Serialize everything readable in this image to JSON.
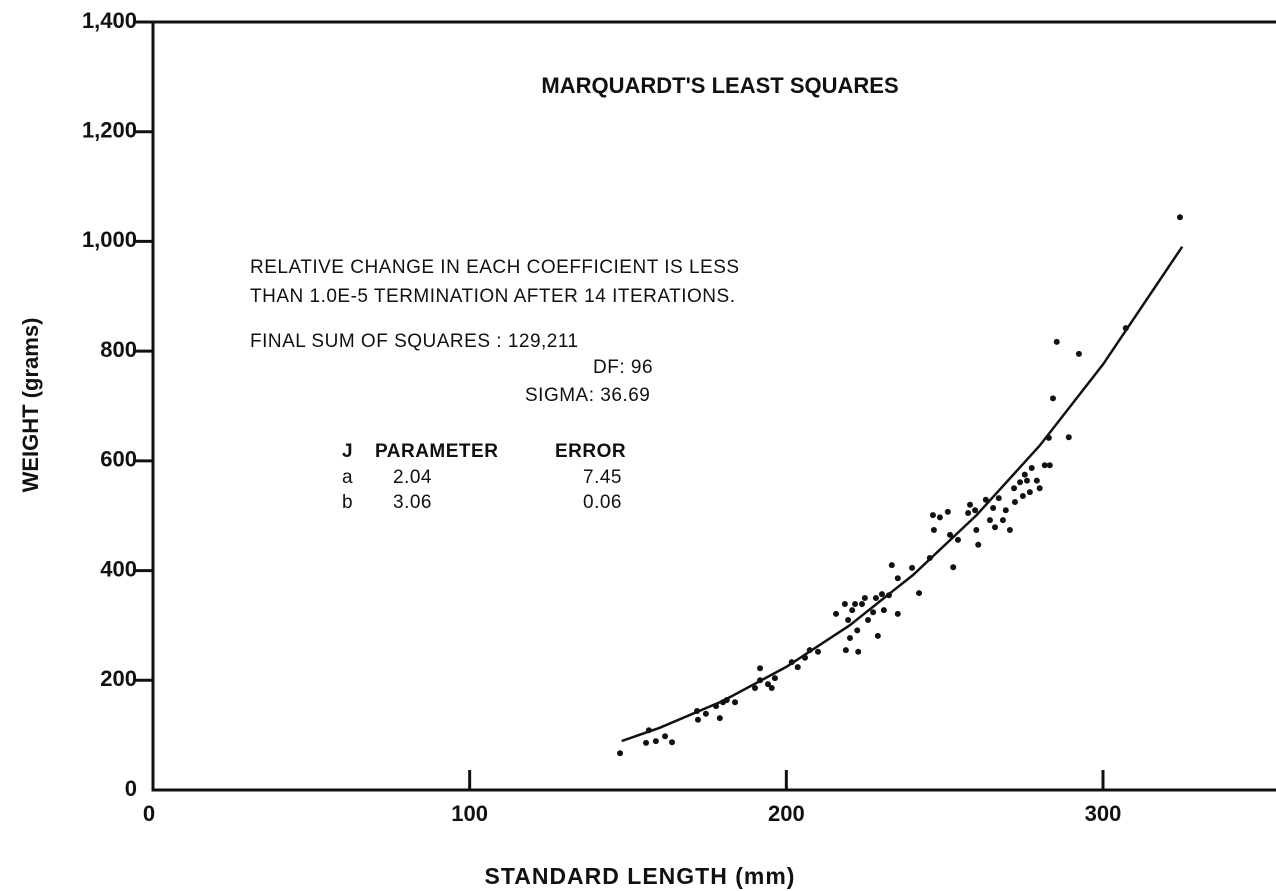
{
  "chart_data": {
    "type": "scatter",
    "title": "MARQUARDT'S LEAST SQUARES",
    "x_label": "STANDARD LENGTH (mm)",
    "y_label": "WEIGHT (grams)",
    "xlim": [
      0,
      355
    ],
    "ylim": [
      0,
      1400
    ],
    "xticks": [
      0,
      100,
      200,
      300
    ],
    "yticks": [
      0,
      200,
      400,
      600,
      800,
      {
        "value": 1000,
        "label": "1,000"
      },
      {
        "value": 1200,
        "label": "1,200"
      },
      {
        "value": 1400,
        "label": "1,400"
      }
    ],
    "annotations": [
      "RELATIVE CHANGE IN EACH COEFFICIENT IS LESS",
      "THAN 1.0E-5 TERMINATION AFTER 14 ITERATIONS.",
      "FINAL SUM OF SQUARES : 129,211",
      "DF: 96",
      "SIGMA: 36.69"
    ],
    "parameter_table": {
      "header": [
        "J",
        "PARAMETER",
        "ERROR"
      ],
      "rows": [
        [
          "a",
          "2.04",
          "7.45"
        ],
        [
          "b",
          "3.06",
          "0.06"
        ]
      ]
    },
    "series": [
      {
        "type": "scatter",
        "color": "#111",
        "x": [
          147.5,
          156.6,
          155.7,
          158.8,
          161.7,
          163.9,
          171.8,
          172.1,
          174.6,
          177.8,
          179,
          180,
          181.2,
          183.8,
          190.1,
          191.7,
          191.7,
          194.2,
          195.4,
          196.4,
          201.7,
          203.6,
          205.9,
          207.4,
          210,
          215.7,
          218.5,
          218.8,
          219.5,
          220.1,
          220.8,
          221.7,
          222.4,
          222.7,
          223.9,
          224.8,
          225.8,
          227.4,
          228.3,
          228.9,
          230.2,
          230.8,
          232.4,
          233.3,
          235.2,
          235.2,
          239.7,
          241.9,
          245.3,
          246.3,
          246.6,
          248.5,
          251,
          251.7,
          252.7,
          254.2,
          257.4,
          258,
          259.6,
          260,
          260.6,
          263,
          264.3,
          265.3,
          265.9,
          267.1,
          268.4,
          269.3,
          270.6,
          271.9,
          272.2,
          273.8,
          274.7,
          275.3,
          276,
          276.9,
          277.5,
          279.1,
          280,
          281.6,
          283.2,
          282.9,
          284.2,
          285.4,
          289.2,
          292.4,
          307.2,
          324.3
        ],
        "values": [
          67,
          109,
          86,
          89,
          98,
          87,
          144,
          128,
          139,
          153,
          131,
          160,
          164,
          160,
          186,
          222,
          200,
          193,
          186,
          204,
          233,
          224,
          241,
          255,
          252,
          321,
          339,
          255,
          310,
          277,
          328,
          339,
          291,
          252,
          339,
          350,
          310,
          324,
          350,
          281,
          357,
          328,
          355,
          410,
          386,
          321,
          405,
          359,
          423,
          501,
          474,
          497,
          507,
          465,
          406,
          456,
          505,
          520,
          510,
          474,
          447,
          529,
          492,
          514,
          479,
          532,
          492,
          510,
          474,
          550,
          525,
          561,
          536,
          575,
          564,
          543,
          587,
          564,
          550,
          592,
          592,
          642,
          714,
          817,
          643,
          795,
          842,
          1044
        ]
      },
      {
        "type": "line",
        "color": "#111",
        "x": [
          148,
          160,
          180,
          200,
          220,
          240,
          260,
          280,
          300,
          325
        ],
        "values": [
          89.3,
          113.3,
          162.5,
          224.4,
          300.2,
          391.9,
          500.6,
          627.9,
          775.9,
          990.4
        ]
      }
    ]
  }
}
